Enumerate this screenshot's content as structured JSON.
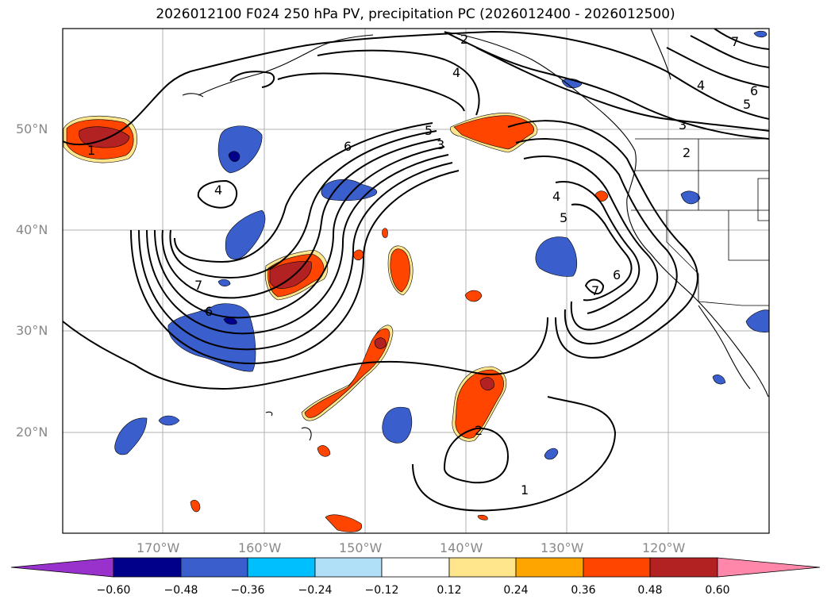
{
  "title": "2026012100 F024 250 hPa PV, precipitation PC (2026012400 - 2026012500)",
  "lat_labels": [
    "50°N",
    "40°N",
    "30°N",
    "20°N"
  ],
  "lon_labels": [
    "170°W",
    "160°W",
    "150°W",
    "140°W",
    "130°W",
    "120°W"
  ],
  "contour_labels": [
    "1",
    "2",
    "3",
    "4",
    "5",
    "6",
    "7"
  ],
  "colorbar": {
    "ticks": [
      "−0.60",
      "−0.48",
      "−0.36",
      "−0.24",
      "−0.12",
      "0.12",
      "0.24",
      "0.36",
      "0.48",
      "0.60"
    ],
    "colors": [
      "#9932cc",
      "#00008b",
      "#3a5fcd",
      "#00bfff",
      "#b0e0f8",
      "#ffffff",
      "#ffe68c",
      "#ffa500",
      "#ff4500",
      "#b22222",
      "#ff88aa"
    ]
  }
}
